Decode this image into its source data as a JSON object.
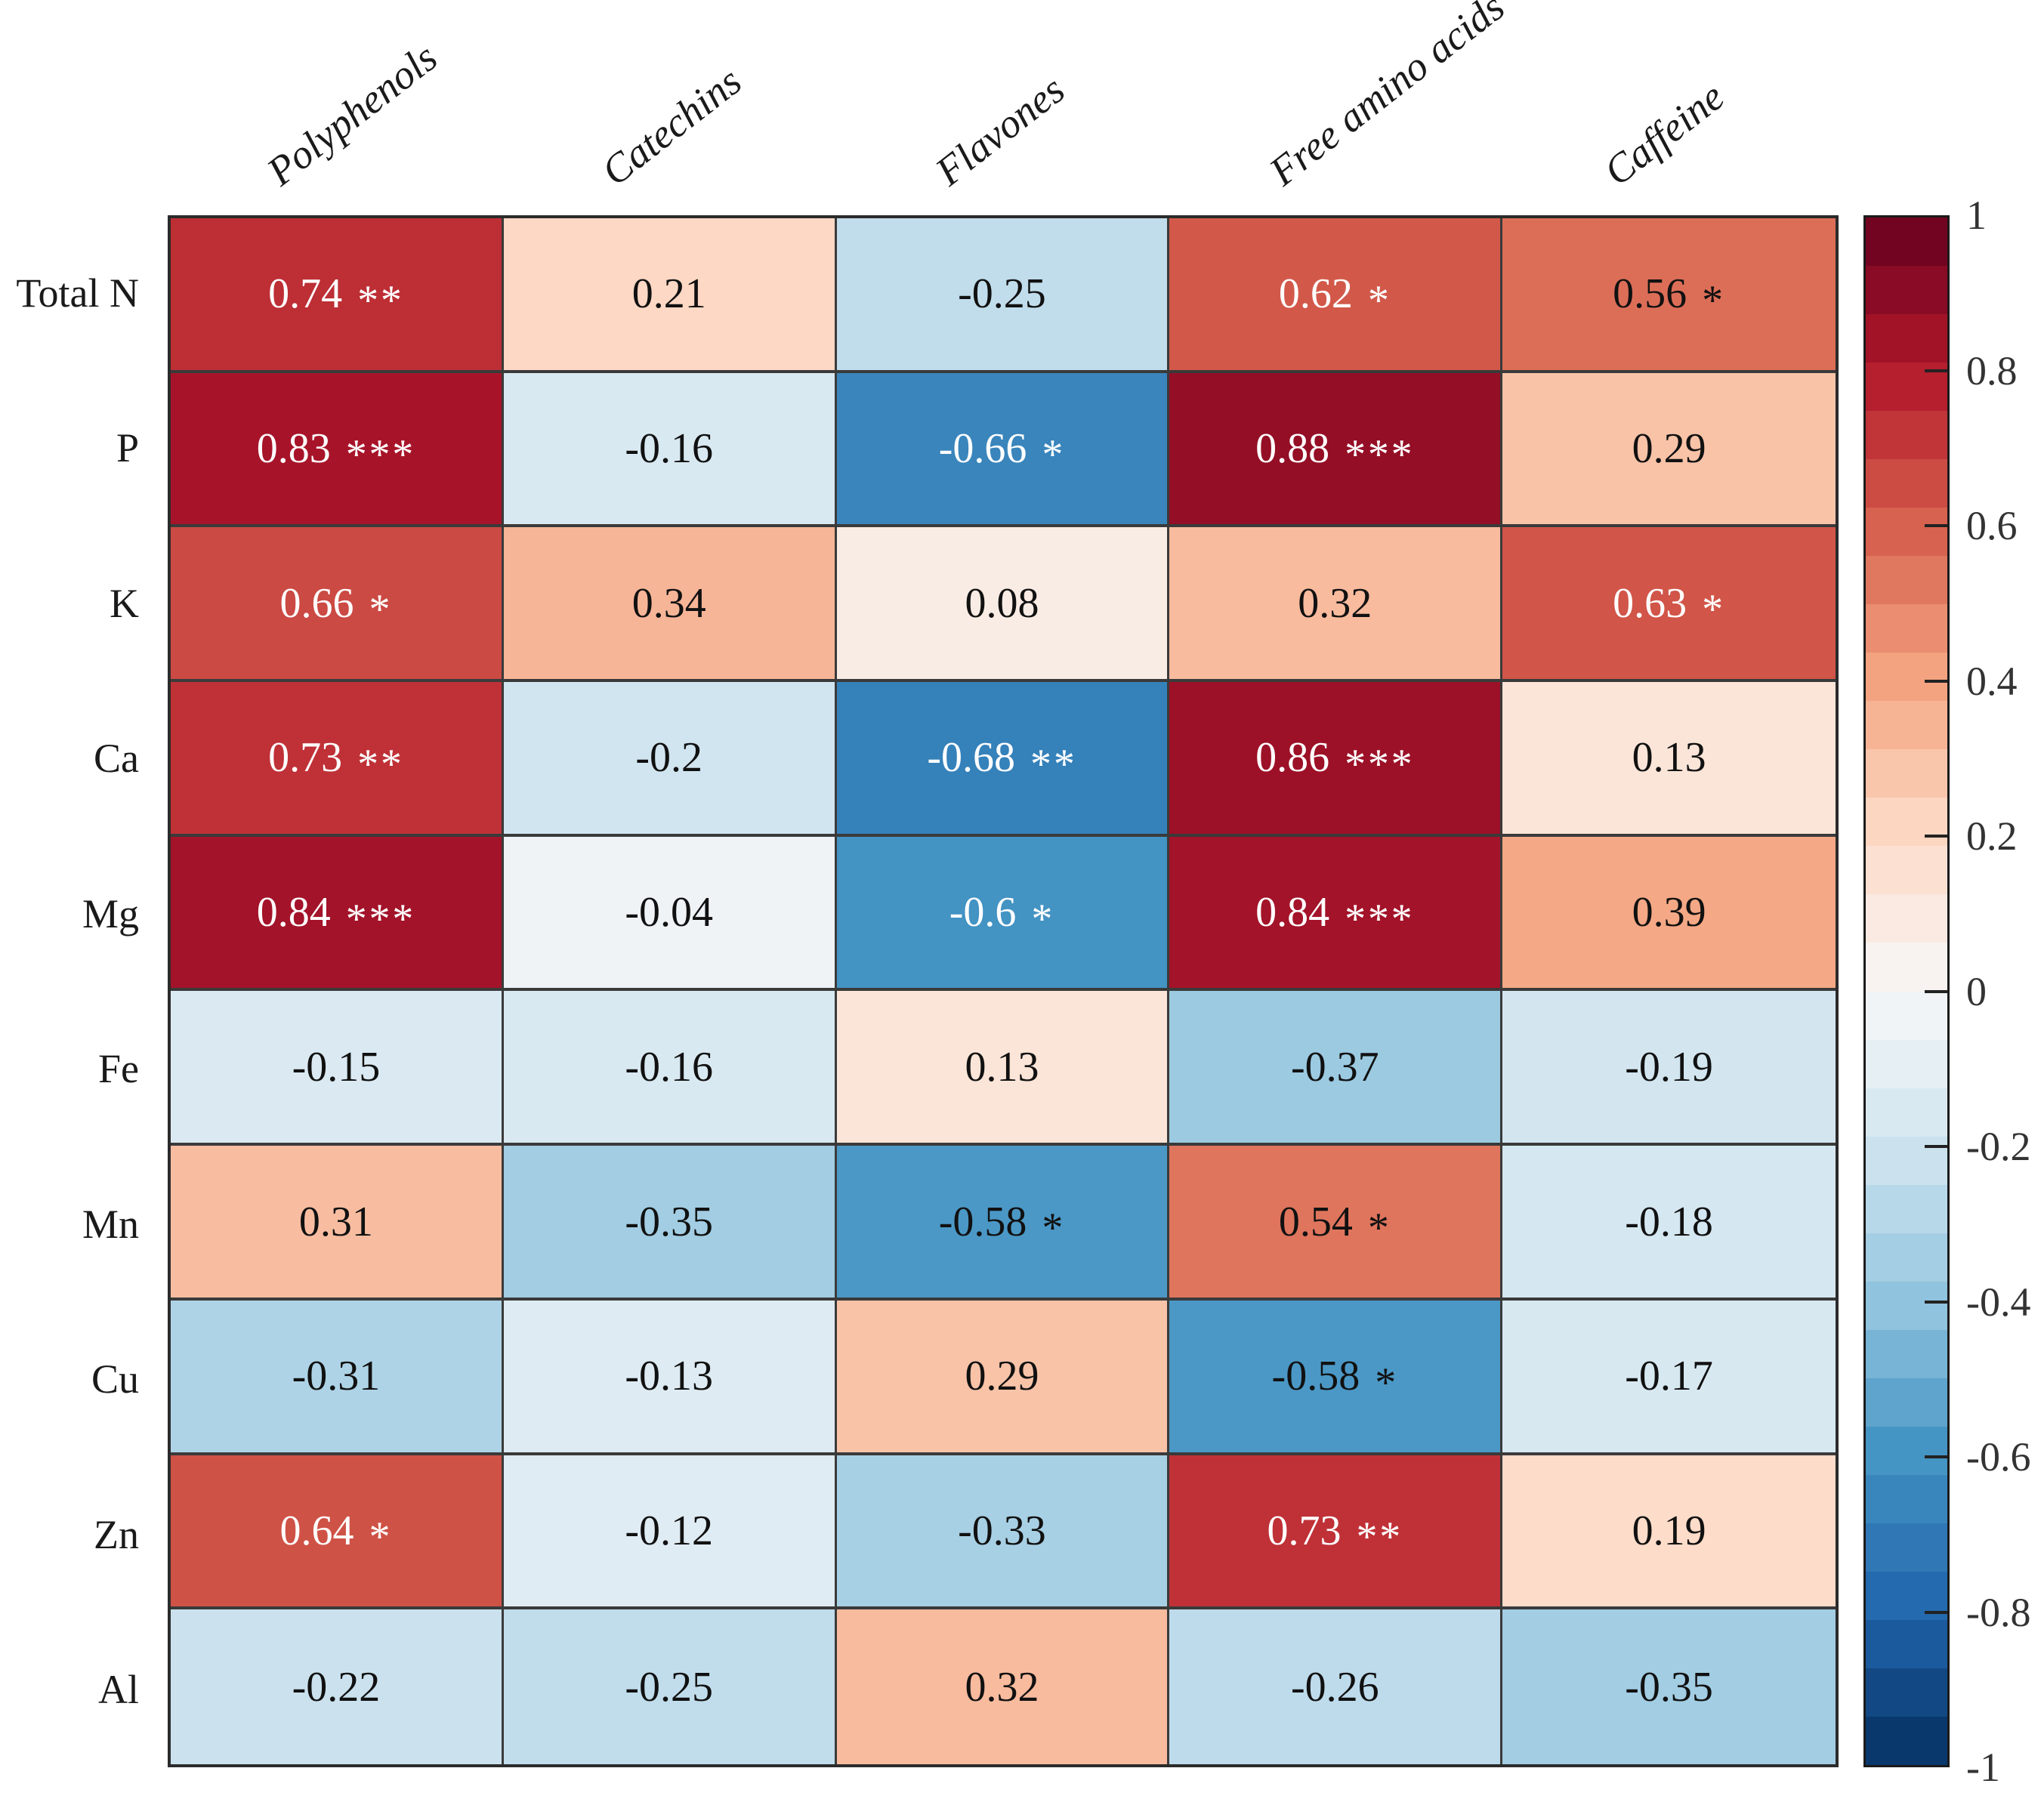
{
  "chart_data": {
    "type": "heatmap",
    "title": "",
    "columns": [
      "Polyphenols",
      "Catechins",
      "Flavones",
      "Free amino acids",
      "Caffeine"
    ],
    "rows": [
      "Total N",
      "P",
      "K",
      "Ca",
      "Mg",
      "Fe",
      "Mn",
      "Cu",
      "Zn",
      "Al"
    ],
    "series": [
      {
        "label": "Total N",
        "cells": [
          {
            "v": 0.74,
            "text": "0.74",
            "stars": "**"
          },
          {
            "v": 0.21,
            "text": "0.21",
            "stars": ""
          },
          {
            "v": -0.25,
            "text": "-0.25",
            "stars": ""
          },
          {
            "v": 0.62,
            "text": "0.62",
            "stars": "*"
          },
          {
            "v": 0.56,
            "text": "0.56",
            "stars": "*"
          }
        ]
      },
      {
        "label": "P",
        "cells": [
          {
            "v": 0.83,
            "text": "0.83",
            "stars": "***"
          },
          {
            "v": -0.16,
            "text": "-0.16",
            "stars": ""
          },
          {
            "v": -0.66,
            "text": "-0.66",
            "stars": "*"
          },
          {
            "v": 0.88,
            "text": "0.88",
            "stars": "***"
          },
          {
            "v": 0.29,
            "text": "0.29",
            "stars": ""
          }
        ]
      },
      {
        "label": "K",
        "cells": [
          {
            "v": 0.66,
            "text": "0.66",
            "stars": "*"
          },
          {
            "v": 0.34,
            "text": "0.34",
            "stars": ""
          },
          {
            "v": 0.08,
            "text": "0.08",
            "stars": ""
          },
          {
            "v": 0.32,
            "text": "0.32",
            "stars": ""
          },
          {
            "v": 0.63,
            "text": "0.63",
            "stars": "*"
          }
        ]
      },
      {
        "label": "Ca",
        "cells": [
          {
            "v": 0.73,
            "text": "0.73",
            "stars": "**"
          },
          {
            "v": -0.2,
            "text": "-0.2",
            "stars": ""
          },
          {
            "v": -0.68,
            "text": "-0.68",
            "stars": "**"
          },
          {
            "v": 0.86,
            "text": "0.86",
            "stars": "***"
          },
          {
            "v": 0.13,
            "text": "0.13",
            "stars": ""
          }
        ]
      },
      {
        "label": "Mg",
        "cells": [
          {
            "v": 0.84,
            "text": "0.84",
            "stars": "***"
          },
          {
            "v": -0.04,
            "text": "-0.04",
            "stars": ""
          },
          {
            "v": -0.6,
            "text": "-0.6",
            "stars": "*"
          },
          {
            "v": 0.84,
            "text": "0.84",
            "stars": "***"
          },
          {
            "v": 0.39,
            "text": "0.39",
            "stars": ""
          }
        ]
      },
      {
        "label": "Fe",
        "cells": [
          {
            "v": -0.15,
            "text": "-0.15",
            "stars": ""
          },
          {
            "v": -0.16,
            "text": "-0.16",
            "stars": ""
          },
          {
            "v": 0.13,
            "text": "0.13",
            "stars": ""
          },
          {
            "v": -0.37,
            "text": "-0.37",
            "stars": ""
          },
          {
            "v": -0.19,
            "text": "-0.19",
            "stars": ""
          }
        ]
      },
      {
        "label": "Mn",
        "cells": [
          {
            "v": 0.31,
            "text": "0.31",
            "stars": ""
          },
          {
            "v": -0.35,
            "text": "-0.35",
            "stars": ""
          },
          {
            "v": -0.58,
            "text": "-0.58",
            "stars": "*"
          },
          {
            "v": 0.54,
            "text": "0.54",
            "stars": "*"
          },
          {
            "v": -0.18,
            "text": "-0.18",
            "stars": ""
          }
        ]
      },
      {
        "label": "Cu",
        "cells": [
          {
            "v": -0.31,
            "text": "-0.31",
            "stars": ""
          },
          {
            "v": -0.13,
            "text": "-0.13",
            "stars": ""
          },
          {
            "v": 0.29,
            "text": "0.29",
            "stars": ""
          },
          {
            "v": -0.58,
            "text": "-0.58",
            "stars": "*"
          },
          {
            "v": -0.17,
            "text": "-0.17",
            "stars": ""
          }
        ]
      },
      {
        "label": "Zn",
        "cells": [
          {
            "v": 0.64,
            "text": "0.64",
            "stars": "*"
          },
          {
            "v": -0.12,
            "text": "-0.12",
            "stars": ""
          },
          {
            "v": -0.33,
            "text": "-0.33",
            "stars": ""
          },
          {
            "v": 0.73,
            "text": "0.73",
            "stars": "**"
          },
          {
            "v": 0.19,
            "text": "0.19",
            "stars": ""
          }
        ]
      },
      {
        "label": "Al",
        "cells": [
          {
            "v": -0.22,
            "text": "-0.22",
            "stars": ""
          },
          {
            "v": -0.25,
            "text": "-0.25",
            "stars": ""
          },
          {
            "v": 0.32,
            "text": "0.32",
            "stars": ""
          },
          {
            "v": -0.26,
            "text": "-0.26",
            "stars": ""
          },
          {
            "v": -0.35,
            "text": "-0.35",
            "stars": ""
          }
        ]
      }
    ],
    "colorbar": {
      "min": -1,
      "max": 1,
      "steps": 32,
      "colormap": "RdBu_r",
      "gradient_colors": [
        "#67001f",
        "#b2182b",
        "#d6604d",
        "#f4a582",
        "#fddbc7",
        "#f7f7f7",
        "#d1e5f0",
        "#92c5de",
        "#4393c3",
        "#2166ac",
        "#053061"
      ],
      "ticks": [
        {
          "v": 1,
          "label": "1"
        },
        {
          "v": 0.8,
          "label": "0.8"
        },
        {
          "v": 0.6,
          "label": "0.6"
        },
        {
          "v": 0.4,
          "label": "0.4"
        },
        {
          "v": 0.2,
          "label": "0.2"
        },
        {
          "v": 0,
          "label": "0"
        },
        {
          "v": -0.2,
          "label": "-0.2"
        },
        {
          "v": -0.4,
          "label": "-0.4"
        },
        {
          "v": -0.6,
          "label": "-0.6"
        },
        {
          "v": -0.8,
          "label": "-0.8"
        },
        {
          "v": -1,
          "label": "-1"
        }
      ]
    },
    "text_rules": {
      "white_text_abs_threshold": 0.6
    },
    "colors": {
      "background": "#ffffff",
      "grid_line": "#3a3a3a",
      "matrix_border": "#2b2b2b",
      "colorbar_border": "#1b1b1b",
      "tick_mark": "#222222",
      "text_dark": "#111111",
      "text_light": "#ffffff"
    },
    "layout_hints": {
      "grid": "on",
      "legend_position": "right-colorbar",
      "xlabel": "",
      "ylabel": ""
    }
  }
}
